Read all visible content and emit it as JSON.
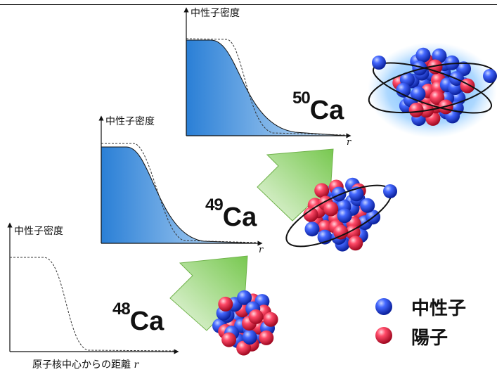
{
  "axis_ylabel": "中性子密度",
  "axis_r": "r",
  "xlabel_main": "原子核中心からの距離",
  "isotopes": [
    {
      "mass": "48",
      "element": "Ca"
    },
    {
      "mass": "49",
      "element": "Ca"
    },
    {
      "mass": "50",
      "element": "Ca"
    }
  ],
  "legend": [
    {
      "label": "中性子",
      "color": "#1d3fe0"
    },
    {
      "label": "陽子",
      "color": "#e02040"
    }
  ],
  "colors": {
    "fill_dark": "#2a7fd6",
    "fill_light": "#cfe6fa",
    "arrow_dark": "#78c850",
    "arrow_light": "#eaf7e2"
  }
}
